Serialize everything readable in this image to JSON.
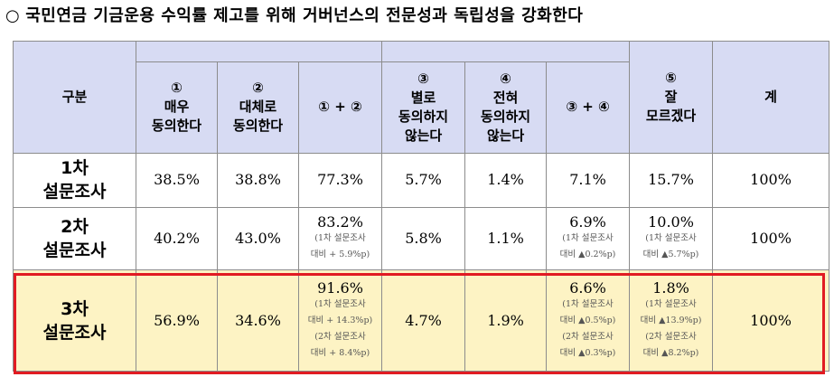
{
  "title": {
    "bullet": "○",
    "text": "국민연금 기금운용 수익률 제고를 위해 거버넌스의 전문성과 독립성을 강화한다"
  },
  "table": {
    "headers": {
      "group": "구분",
      "c1": {
        "num": "①",
        "line1": "매우",
        "line2": "동의한다"
      },
      "c2": {
        "num": "②",
        "line1": "대체로",
        "line2": "동의한다"
      },
      "c12": "① + ②",
      "c3": {
        "num": "③",
        "line1": "별로",
        "line2": "동의하지",
        "line3": "않는다"
      },
      "c4": {
        "num": "④",
        "line1": "전혀",
        "line2": "동의하지",
        "line3": "않는다"
      },
      "c34": "③ + ④",
      "c5": {
        "num": "⑤",
        "line1": "잘",
        "line2": "모르겠다"
      },
      "total": "계"
    },
    "rows": [
      {
        "label1": "1차",
        "label2": "설문조사",
        "c1": "38.5%",
        "c2": "38.8%",
        "c12": {
          "value": "77.3%"
        },
        "c3": "5.7%",
        "c4": "1.4%",
        "c34": {
          "value": "7.1%"
        },
        "c5": {
          "value": "15.7%"
        },
        "total": "100%"
      },
      {
        "label1": "2차",
        "label2": "설문조사",
        "c1": "40.2%",
        "c2": "43.0%",
        "c12": {
          "value": "83.2%",
          "note1": "(1차 설문조사",
          "note2": "대비 + 5.9%p)"
        },
        "c3": "5.8%",
        "c4": "1.1%",
        "c34": {
          "value": "6.9%",
          "note1": "(1차 설문조사",
          "note2": "대비 ▲0.2%p)"
        },
        "c5": {
          "value": "10.0%",
          "note1": "(1차 설문조사",
          "note2": "대비 ▲5.7%p)"
        },
        "total": "100%"
      },
      {
        "label1": "3차",
        "label2": "설문조사",
        "c1": "56.9%",
        "c2": "34.6%",
        "c12": {
          "value": "91.6%",
          "note1": "(1차 설문조사",
          "note2": "대비 + 14.3%p)",
          "note3": "(2차 설문조사",
          "note4": "대비 + 8.4%p)"
        },
        "c3": "4.7%",
        "c4": "1.9%",
        "c34": {
          "value": "6.6%",
          "note1": "(1차 설문조사",
          "note2": "대비 ▲0.5%p)",
          "note3": "(2차 설문조사",
          "note4": "대비 ▲0.3%p)"
        },
        "c5": {
          "value": "1.8%",
          "note1": "(1차 설문조사",
          "note2": "대비 ▲13.9%p)",
          "note3": "(2차 설문조사",
          "note4": "대비 ▲8.2%p)"
        },
        "total": "100%"
      }
    ]
  },
  "colors": {
    "header_bg": "#d7dbf3",
    "highlight_bg": "#fdf3c4",
    "highlight_border": "#e11b22",
    "grid": "#8c8c8c"
  }
}
